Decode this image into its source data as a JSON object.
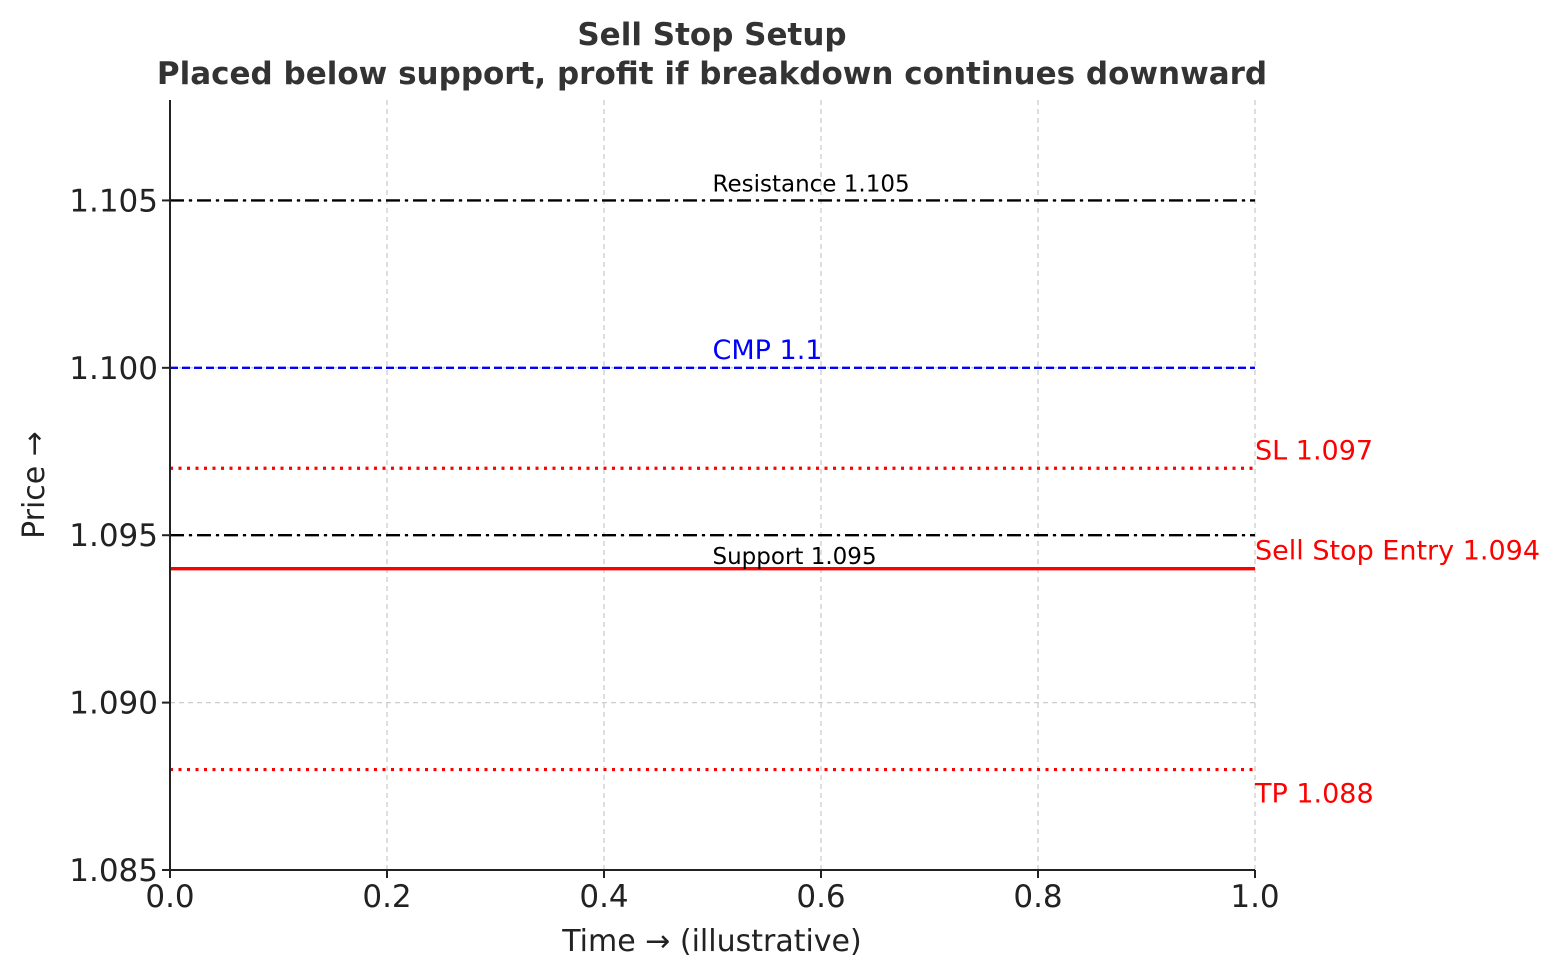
{
  "chart_data": {
    "type": "line",
    "title": "Sell Stop Setup",
    "subtitle": "Placed below support, profit if breakdown continues downward",
    "xlabel": "Time → (illustrative)",
    "ylabel": "Price →",
    "xlim": [
      0.0,
      1.0
    ],
    "ylim": [
      1.085,
      1.108
    ],
    "xticks": [
      0.0,
      0.2,
      0.4,
      0.6,
      0.8,
      1.0
    ],
    "xtick_labels": [
      "0.0",
      "0.2",
      "0.4",
      "0.6",
      "0.8",
      "1.0"
    ],
    "yticks": [
      1.085,
      1.09,
      1.095,
      1.1,
      1.105
    ],
    "ytick_labels": [
      "1.085",
      "1.090",
      "1.095",
      "1.100",
      "1.105"
    ],
    "grid": true,
    "levels": [
      {
        "key": "resistance",
        "value": 1.105,
        "label": "Resistance 1.105",
        "color": "#000000",
        "style": "dashdot",
        "label_x": 0.5,
        "label_side": "above"
      },
      {
        "key": "cmp",
        "value": 1.1,
        "label": "CMP 1.1",
        "color": "#0000ff",
        "style": "dashed",
        "label_x": 0.5,
        "label_side": "above"
      },
      {
        "key": "sl",
        "value": 1.097,
        "label": "SL 1.097",
        "color": "#ff0000",
        "style": "dotted",
        "label_x": 1.0,
        "label_side": "above"
      },
      {
        "key": "support",
        "value": 1.095,
        "label": "Support 1.095",
        "color": "#000000",
        "style": "dashdot",
        "label_x": 0.5,
        "label_side": "below"
      },
      {
        "key": "entry",
        "value": 1.094,
        "label": "Sell Stop Entry 1.094",
        "color": "#ff0000",
        "style": "solid",
        "label_x": 1.0,
        "label_side": "above"
      },
      {
        "key": "tp",
        "value": 1.088,
        "label": "TP 1.088",
        "color": "#ff0000",
        "style": "dotted",
        "label_x": 1.0,
        "label_side": "below"
      }
    ]
  }
}
